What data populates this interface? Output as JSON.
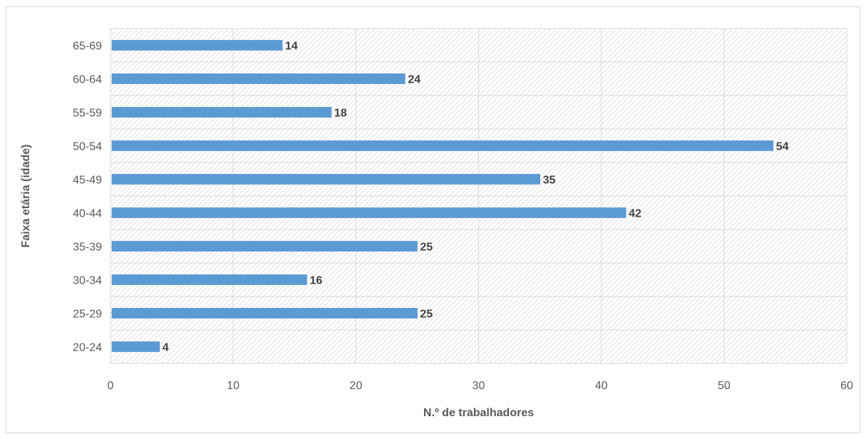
{
  "chart_data": {
    "type": "bar",
    "orientation": "horizontal",
    "categories": [
      "20-24",
      "25-29",
      "30-34",
      "35-39",
      "40-44",
      "45-49",
      "50-54",
      "55-59",
      "60-64",
      "65-69"
    ],
    "values": [
      4,
      25,
      16,
      25,
      42,
      35,
      54,
      18,
      24,
      14
    ],
    "title": "",
    "xlabel": "N.º de trabalhadores",
    "ylabel": "Faixa etária (idade)",
    "xlim": [
      0,
      60
    ],
    "xticks": [
      0,
      10,
      20,
      30,
      40,
      50,
      60
    ],
    "grid": true,
    "legend": "none",
    "data_labels": true,
    "colors": {
      "bar": "#5b9bd5",
      "bar_edge": "#4a8ac6",
      "grid": "#d9d9d9",
      "hatch": "#d4d4d4",
      "text": "#595959",
      "label": "#404040"
    }
  }
}
